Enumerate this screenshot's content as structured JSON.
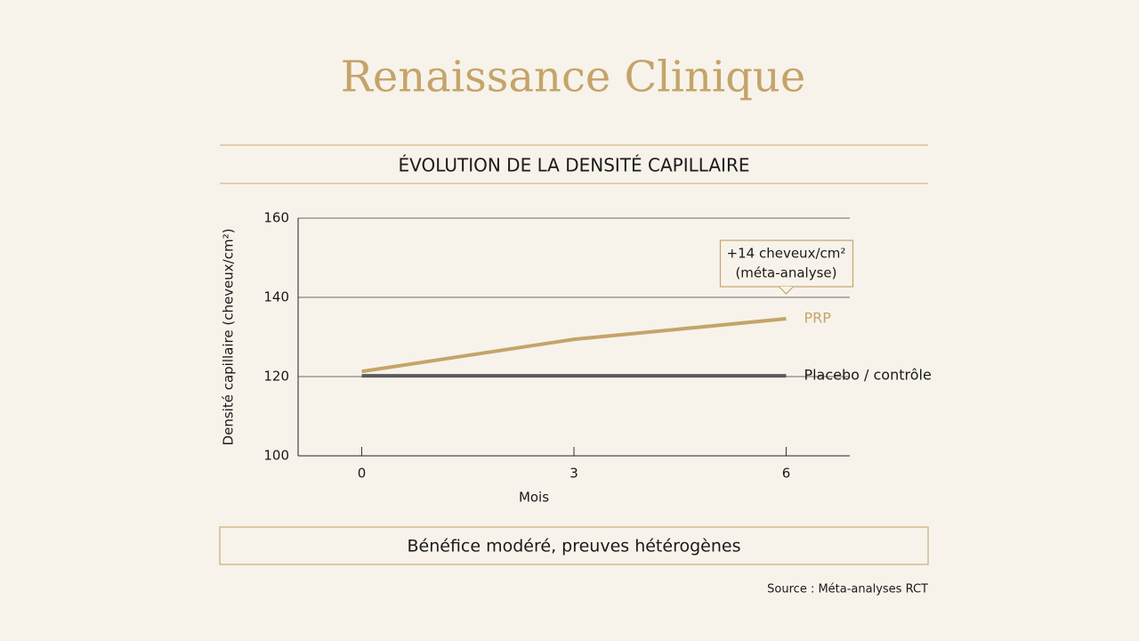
{
  "header": {
    "title": "Renaissance Clinique"
  },
  "chart_data": {
    "type": "line",
    "title": "ÉVOLUTION DE LA DENSITÉ CAPILLAIRE",
    "x": [
      0,
      3,
      6
    ],
    "xlim": [
      -0.9,
      6.9
    ],
    "xticks": [
      0,
      3,
      6
    ],
    "ylim": [
      100,
      160
    ],
    "yticks": [
      100,
      120,
      140,
      160
    ],
    "grid": true,
    "xlabel": "Mois",
    "ylabel": "Densité capillaire (cheveux/cm²)",
    "series": [
      {
        "name": "PRP",
        "color": "#c4a46a",
        "values": [
          121.3,
          129.4,
          134.6
        ]
      },
      {
        "name": "Placebo / contrôle",
        "color": "#5a5a5a",
        "values": [
          120.2,
          120.2,
          120.2
        ]
      }
    ],
    "annotation": [
      "+14 cheveux/cm²",
      "(méta-analyse)"
    ]
  },
  "summary": "Bénéfice modéré, preuves hétérogènes",
  "source": "Source : Méta-analyses RCT"
}
